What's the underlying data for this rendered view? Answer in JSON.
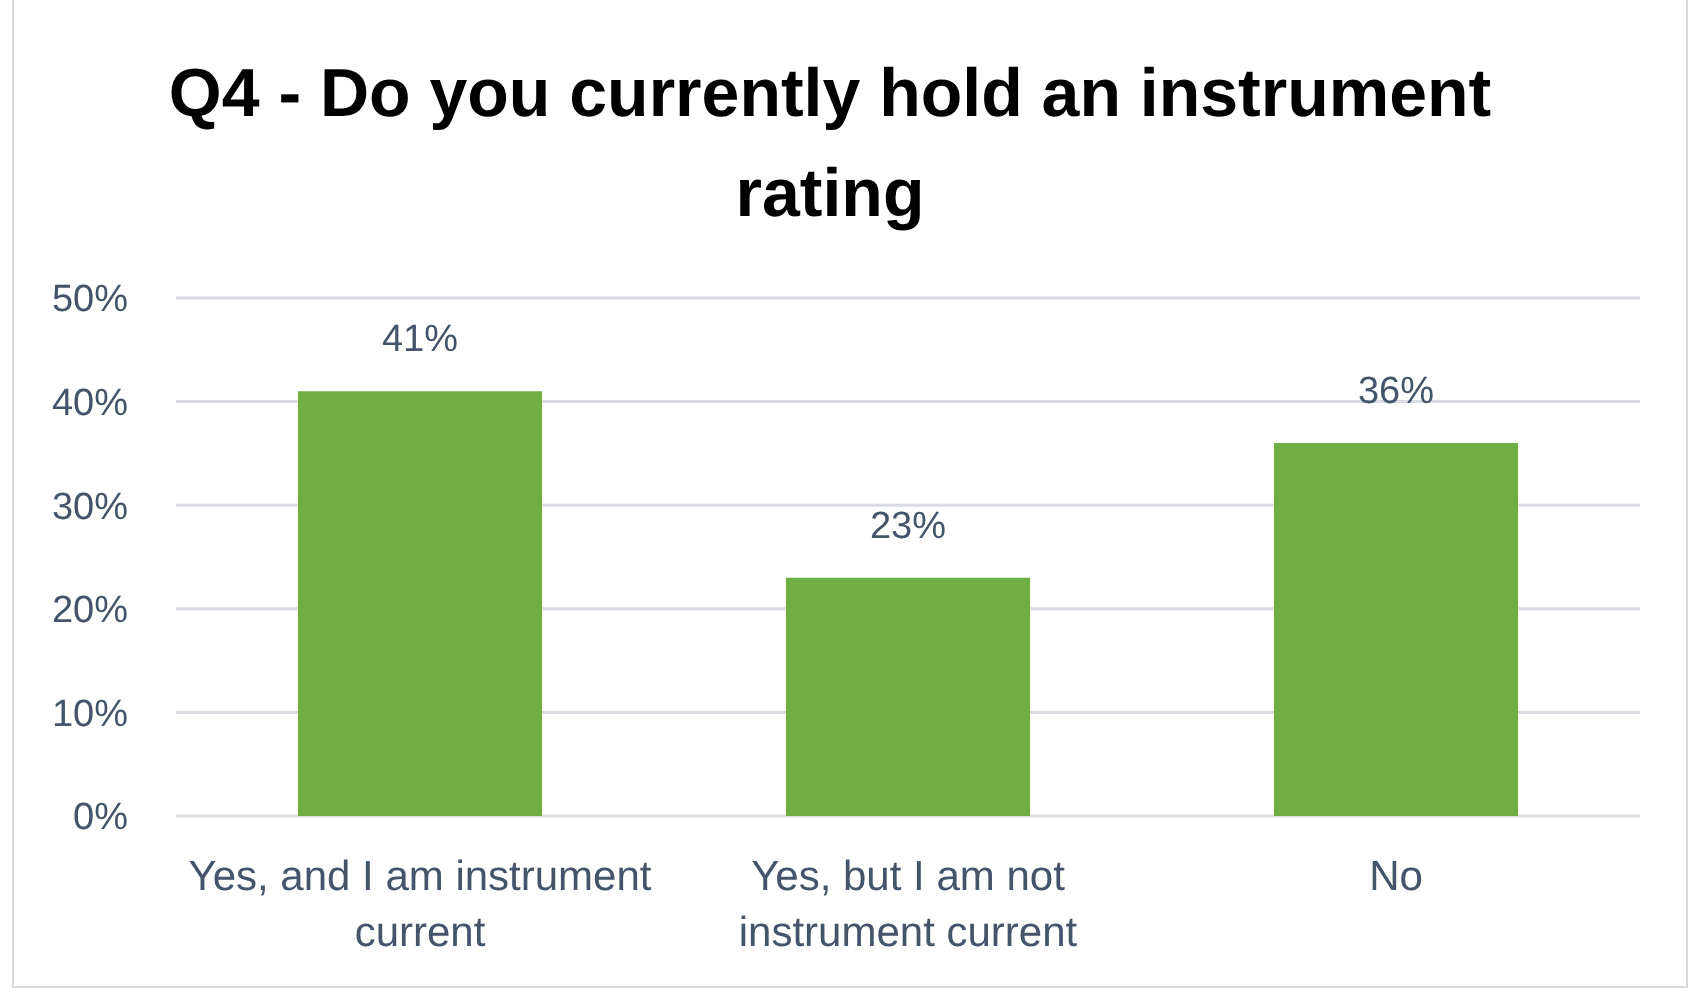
{
  "chart_data": {
    "type": "bar",
    "title": "Q4 - Do you currently hold an instrument rating",
    "categories": [
      "Yes, and I am instrument current",
      "Yes, but I am not instrument current",
      "No"
    ],
    "values": [
      41,
      23,
      36
    ],
    "value_labels": [
      "41%",
      "23%",
      "36%"
    ],
    "color": "#6fae43",
    "ylim": [
      0,
      50
    ],
    "yticks": [
      {
        "value": 0,
        "label": "0%"
      },
      {
        "value": 10,
        "label": "10%"
      },
      {
        "value": 20,
        "label": "20%"
      },
      {
        "value": 30,
        "label": "30%"
      },
      {
        "value": 40,
        "label": "40%"
      },
      {
        "value": 50,
        "label": "50%"
      }
    ],
    "grid": "y"
  }
}
